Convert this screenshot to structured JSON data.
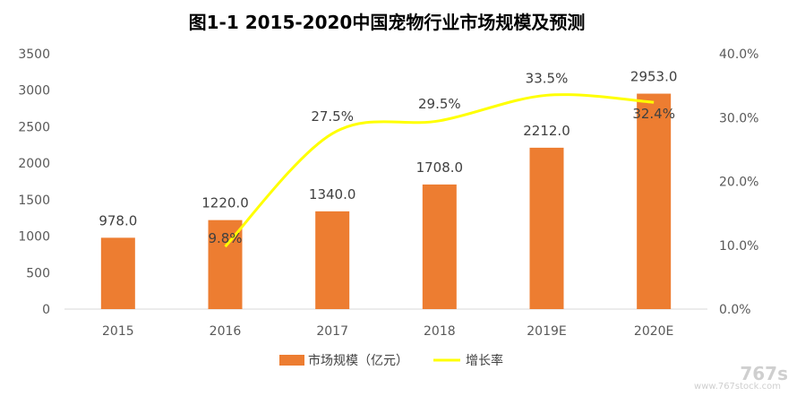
{
  "chart_data": {
    "type": "bar",
    "title": "图1-1  2015-2020中国宠物行业市场规模及预测",
    "categories": [
      "2015",
      "2016",
      "2017",
      "2018",
      "2019E",
      "2020E"
    ],
    "series": [
      {
        "name": "市场规模（亿元）",
        "type": "bar",
        "axis": "left",
        "color": "#ed7d31",
        "values": [
          978.0,
          1220.0,
          1340.0,
          1708.0,
          2212.0,
          2953.0
        ],
        "labels": [
          "978.0",
          "1220.0",
          "1340.0",
          "1708.0",
          "2212.0",
          "2953.0"
        ]
      },
      {
        "name": "增长率",
        "type": "line",
        "axis": "right",
        "color": "#ffff00",
        "values": [
          null,
          9.8,
          27.5,
          29.5,
          33.5,
          32.4
        ],
        "labels": [
          null,
          "9.8%",
          "27.5%",
          "29.5%",
          "33.5%",
          "32.4%"
        ]
      }
    ],
    "y_left": {
      "min": 0,
      "max": 3500,
      "ticks": [
        "0",
        "500",
        "1000",
        "1500",
        "2000",
        "2500",
        "3000",
        "3500"
      ]
    },
    "y_right": {
      "min": 0,
      "max": 40,
      "ticks": [
        "0.0%",
        "10.0%",
        "20.0%",
        "30.0%",
        "40.0%"
      ]
    },
    "grid": false,
    "legend": "bottom-center"
  },
  "watermark": {
    "logo_text": "767s",
    "url_text": "www.767stock.com"
  }
}
